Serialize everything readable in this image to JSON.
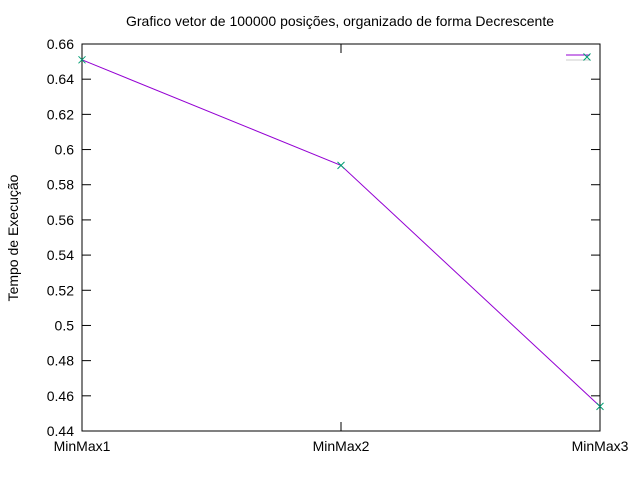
{
  "chart_data": {
    "type": "line",
    "title": "Grafico vetor de 100000 posições, organizado de forma Decrescente",
    "xlabel": "",
    "ylabel": "Tempo de Execução",
    "categories": [
      "MinMax1",
      "MinMax2",
      "MinMax3"
    ],
    "series": [
      {
        "values": [
          0.651,
          0.591,
          0.454
        ],
        "line_color": "#9400D3",
        "marker": "x",
        "marker_color": "#009E73"
      }
    ],
    "ylim": [
      0.44,
      0.66
    ],
    "yticks": [
      0.44,
      0.46,
      0.48,
      0.5,
      0.52,
      0.54,
      0.56,
      0.58,
      0.6,
      0.62,
      0.64,
      0.66
    ],
    "ytick_labels": [
      "0.44",
      "0.46",
      "0.48",
      "0.5",
      "0.52",
      "0.54",
      "0.56",
      "0.58",
      "0.6",
      "0.62",
      "0.64",
      "0.66"
    ],
    "grid": false,
    "legend": "top-right"
  }
}
